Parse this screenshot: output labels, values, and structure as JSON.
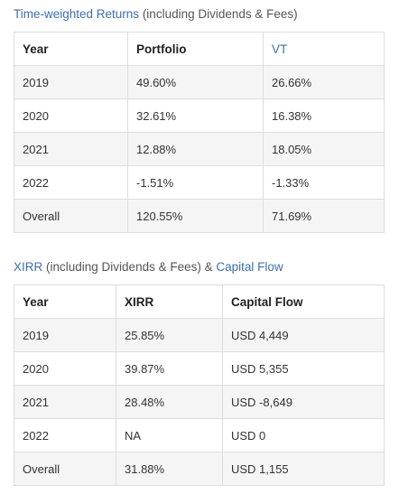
{
  "section1": {
    "title_link": "Time-weighted Returns",
    "title_rest": " (including Dividends & Fees)",
    "headers": [
      "Year",
      "Portfolio",
      "VT"
    ],
    "rows": [
      [
        "2019",
        "49.60%",
        "26.66%"
      ],
      [
        "2020",
        "32.61%",
        "16.38%"
      ],
      [
        "2021",
        "12.88%",
        "18.05%"
      ],
      [
        "2022",
        "-1.51%",
        "-1.33%"
      ],
      [
        "Overall",
        "120.55%",
        "71.69%"
      ]
    ]
  },
  "section2": {
    "title_link1": "XIRR",
    "title_mid": " (including Dividends & Fees) & ",
    "title_link2": "Capital Flow",
    "headers": [
      "Year",
      "XIRR",
      "Capital Flow"
    ],
    "rows": [
      [
        "2019",
        "25.85%",
        "USD 4,449"
      ],
      [
        "2020",
        "39.87%",
        "USD 5,355"
      ],
      [
        "2021",
        "28.48%",
        "USD -8,649"
      ],
      [
        "2022",
        "NA",
        "USD 0"
      ],
      [
        "Overall",
        "31.88%",
        "USD 1,155"
      ]
    ]
  },
  "colors": {
    "link": "#3b6fb6",
    "border": "#dddddd",
    "shaded_row": "#f5f5f5"
  }
}
